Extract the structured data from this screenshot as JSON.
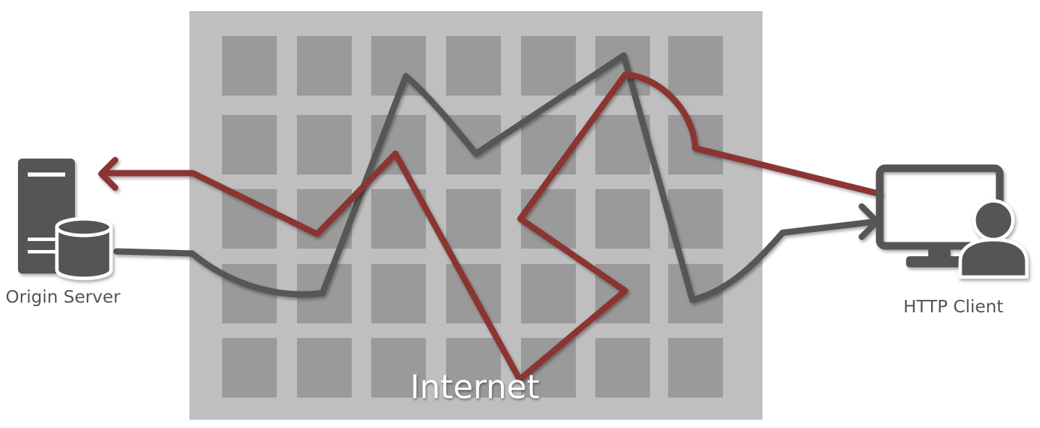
{
  "labels": {
    "origin_server": "Origin Server",
    "http_client": "HTTP Client",
    "internet": "Internet"
  },
  "colors": {
    "internet_bg": "#bfbfbf",
    "internet_cell": "#9a9a9a",
    "request_path": "#575757",
    "response_path": "#8b3530",
    "icon_fill": "#555555"
  },
  "icons": {
    "origin_server": "server-with-database-icon",
    "http_client": "monitor-with-user-icon"
  },
  "grid": {
    "rows": 5,
    "columns": 7
  }
}
